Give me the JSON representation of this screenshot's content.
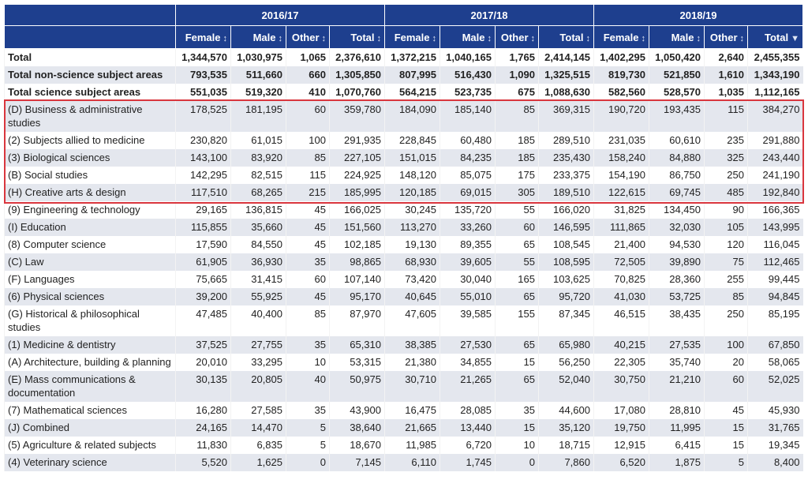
{
  "years": [
    "2016/17",
    "2017/18",
    "2018/19"
  ],
  "columns": [
    "Female",
    "Male",
    "Other",
    "Total"
  ],
  "sort_icons": {
    "unsorted": "↕",
    "sorted_desc": "▼"
  },
  "sorted_column": "2018/19 Total (descending)",
  "highlight_color": "#d9363e",
  "header_color": "#1e3f8e",
  "rows": [
    {
      "label": "Total",
      "bold": true,
      "values": [
        "1,344,570",
        "1,030,975",
        "1,065",
        "2,376,610",
        "1,372,215",
        "1,040,165",
        "1,765",
        "2,414,145",
        "1,402,295",
        "1,050,420",
        "2,640",
        "2,455,355"
      ]
    },
    {
      "label": "Total non-science subject areas",
      "bold": true,
      "values": [
        "793,535",
        "511,660",
        "660",
        "1,305,850",
        "807,995",
        "516,430",
        "1,090",
        "1,325,515",
        "819,730",
        "521,850",
        "1,610",
        "1,343,190"
      ]
    },
    {
      "label": "Total science subject areas",
      "bold": true,
      "values": [
        "551,035",
        "519,320",
        "410",
        "1,070,760",
        "564,215",
        "523,735",
        "675",
        "1,088,630",
        "582,560",
        "528,570",
        "1,035",
        "1,112,165"
      ]
    },
    {
      "label": "(D) Business & administrative studies",
      "values": [
        "178,525",
        "181,195",
        "60",
        "359,780",
        "184,090",
        "185,140",
        "85",
        "369,315",
        "190,720",
        "193,435",
        "115",
        "384,270"
      ]
    },
    {
      "label": "(2) Subjects allied to medicine",
      "values": [
        "230,820",
        "61,015",
        "100",
        "291,935",
        "228,845",
        "60,480",
        "185",
        "289,510",
        "231,035",
        "60,610",
        "235",
        "291,880"
      ]
    },
    {
      "label": "(3) Biological sciences",
      "values": [
        "143,100",
        "83,920",
        "85",
        "227,105",
        "151,015",
        "84,235",
        "185",
        "235,430",
        "158,240",
        "84,880",
        "325",
        "243,440"
      ]
    },
    {
      "label": "(B) Social studies",
      "values": [
        "142,295",
        "82,515",
        "115",
        "224,925",
        "148,120",
        "85,075",
        "175",
        "233,375",
        "154,190",
        "86,750",
        "250",
        "241,190"
      ]
    },
    {
      "label": "(H) Creative arts & design",
      "values": [
        "117,510",
        "68,265",
        "215",
        "185,995",
        "120,185",
        "69,015",
        "305",
        "189,510",
        "122,615",
        "69,745",
        "485",
        "192,840"
      ]
    },
    {
      "label": "(9) Engineering & technology",
      "values": [
        "29,165",
        "136,815",
        "45",
        "166,025",
        "30,245",
        "135,720",
        "55",
        "166,020",
        "31,825",
        "134,450",
        "90",
        "166,365"
      ]
    },
    {
      "label": "(I) Education",
      "values": [
        "115,855",
        "35,660",
        "45",
        "151,560",
        "113,270",
        "33,260",
        "60",
        "146,595",
        "111,865",
        "32,030",
        "105",
        "143,995"
      ]
    },
    {
      "label": "(8) Computer science",
      "values": [
        "17,590",
        "84,550",
        "45",
        "102,185",
        "19,130",
        "89,355",
        "65",
        "108,545",
        "21,400",
        "94,530",
        "120",
        "116,045"
      ]
    },
    {
      "label": "(C) Law",
      "values": [
        "61,905",
        "36,930",
        "35",
        "98,865",
        "68,930",
        "39,605",
        "55",
        "108,595",
        "72,505",
        "39,890",
        "75",
        "112,465"
      ]
    },
    {
      "label": "(F) Languages",
      "values": [
        "75,665",
        "31,415",
        "60",
        "107,140",
        "73,420",
        "30,040",
        "165",
        "103,625",
        "70,825",
        "28,360",
        "255",
        "99,445"
      ]
    },
    {
      "label": "(6) Physical sciences",
      "values": [
        "39,200",
        "55,925",
        "45",
        "95,170",
        "40,645",
        "55,010",
        "65",
        "95,720",
        "41,030",
        "53,725",
        "85",
        "94,845"
      ]
    },
    {
      "label": "(G) Historical & philosophical studies",
      "values": [
        "47,485",
        "40,400",
        "85",
        "87,970",
        "47,605",
        "39,585",
        "155",
        "87,345",
        "46,515",
        "38,435",
        "250",
        "85,195"
      ]
    },
    {
      "label": "(1) Medicine & dentistry",
      "values": [
        "37,525",
        "27,755",
        "35",
        "65,310",
        "38,385",
        "27,530",
        "65",
        "65,980",
        "40,215",
        "27,535",
        "100",
        "67,850"
      ]
    },
    {
      "label": "(A) Architecture, building & planning",
      "values": [
        "20,010",
        "33,295",
        "10",
        "53,315",
        "21,380",
        "34,855",
        "15",
        "56,250",
        "22,305",
        "35,740",
        "20",
        "58,065"
      ]
    },
    {
      "label": "(E) Mass communications & documentation",
      "values": [
        "30,135",
        "20,805",
        "40",
        "50,975",
        "30,710",
        "21,265",
        "65",
        "52,040",
        "30,750",
        "21,210",
        "60",
        "52,025"
      ]
    },
    {
      "label": "(7) Mathematical sciences",
      "values": [
        "16,280",
        "27,585",
        "35",
        "43,900",
        "16,475",
        "28,085",
        "35",
        "44,600",
        "17,080",
        "28,810",
        "45",
        "45,930"
      ]
    },
    {
      "label": "(J) Combined",
      "values": [
        "24,165",
        "14,470",
        "5",
        "38,640",
        "21,665",
        "13,440",
        "15",
        "35,120",
        "19,750",
        "11,995",
        "15",
        "31,765"
      ]
    },
    {
      "label": "(5) Agriculture & related subjects",
      "values": [
        "11,830",
        "6,835",
        "5",
        "18,670",
        "11,985",
        "6,720",
        "10",
        "18,715",
        "12,915",
        "6,415",
        "15",
        "19,345"
      ]
    },
    {
      "label": "(4) Veterinary science",
      "values": [
        "5,520",
        "1,625",
        "0",
        "7,145",
        "6,110",
        "1,745",
        "0",
        "7,860",
        "6,520",
        "1,875",
        "5",
        "8,400"
      ]
    }
  ]
}
